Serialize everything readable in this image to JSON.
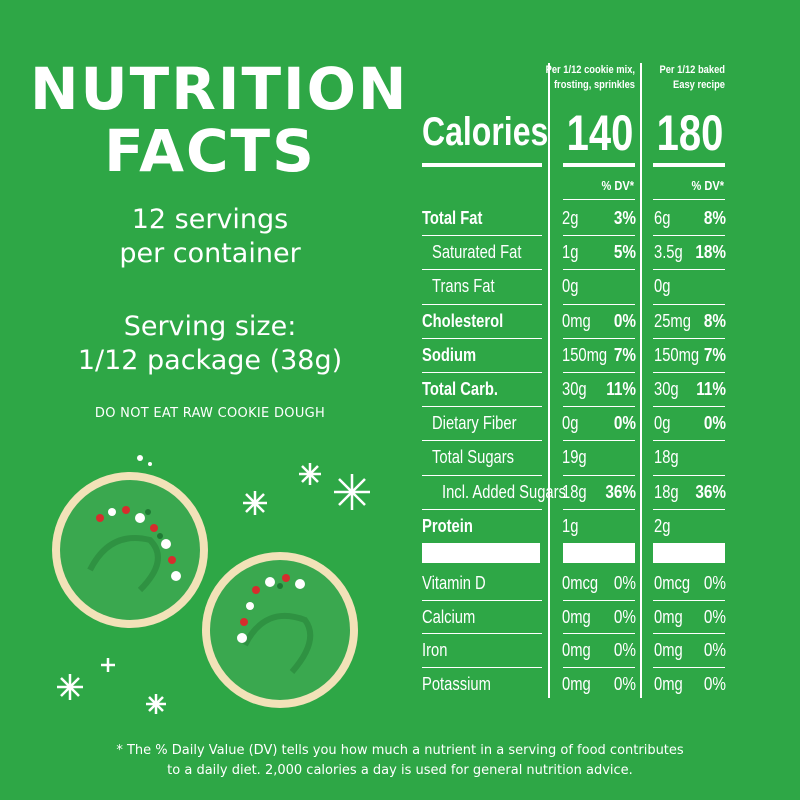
{
  "panel": {
    "title_line1": "NUTRITION",
    "title_line2": "FACTS",
    "servings_line1": "12 servings",
    "servings_line2": "per container",
    "size_line1": "Serving size:",
    "size_line2": "1/12 package (38g)",
    "warning": "DO NOT EAT RAW COOKIE DOUGH",
    "footnote_line1": "* The % Daily Value (DV) tells you how much a nutrient in a serving of food contributes",
    "footnote_line2": "to a daily diet. 2,000 calories a day is used for general nutrition advice."
  },
  "table": {
    "col1_head_line1": "Per 1/12 cookie mix,",
    "col1_head_line2": "frosting, sprinkles",
    "col2_head_line1": "Per 1/12 baked",
    "col2_head_line2": "Easy recipe",
    "calories_label": "Calories",
    "calories_1": "140",
    "calories_2": "180",
    "dv_header": "% DV*",
    "rows": [
      {
        "label": "Total Fat",
        "v1": "2g",
        "dv1": "3%",
        "v2": "6g",
        "dv2": "8%"
      },
      {
        "label": "Saturated Fat",
        "v1": "1g",
        "dv1": "5%",
        "v2": "3.5g",
        "dv2": "18%"
      },
      {
        "label": "Trans Fat",
        "v1": "0g",
        "dv1": "",
        "v2": "0g",
        "dv2": ""
      },
      {
        "label": "Cholesterol",
        "v1": "0mg",
        "dv1": "0%",
        "v2": "25mg",
        "dv2": "8%"
      },
      {
        "label": "Sodium",
        "v1": "150mg",
        "dv1": "7%",
        "v2": "150mg",
        "dv2": "7%"
      },
      {
        "label": "Total Carb.",
        "v1": "30g",
        "dv1": "11%",
        "v2": "30g",
        "dv2": "11%"
      },
      {
        "label": "Dietary Fiber",
        "v1": "0g",
        "dv1": "0%",
        "v2": "0g",
        "dv2": "0%"
      },
      {
        "label": "Total Sugars",
        "v1": "19g",
        "dv1": "",
        "v2": "18g",
        "dv2": ""
      },
      {
        "label": "Incl. Added Sugars",
        "v1": "18g",
        "dv1": "36%",
        "v2": "18g",
        "dv2": "36%"
      },
      {
        "label": "Protein",
        "v1": "1g",
        "dv1": "",
        "v2": "2g",
        "dv2": ""
      }
    ],
    "vitamins": [
      {
        "label": "Vitamin D",
        "v1": "0mcg",
        "dv1": "0%",
        "v2": "0mcg",
        "dv2": "0%"
      },
      {
        "label": "Calcium",
        "v1": "0mg",
        "dv1": "0%",
        "v2": "0mg",
        "dv2": "0%"
      },
      {
        "label": "Iron",
        "v1": "0mg",
        "dv1": "0%",
        "v2": "0mg",
        "dv2": "0%"
      },
      {
        "label": "Potassium",
        "v1": "0mg",
        "dv1": "0%",
        "v2": "0mg",
        "dv2": "0%"
      }
    ]
  },
  "colors": {
    "background": "#2ea746",
    "frosting": "#3aa84f",
    "cookie": "#f2e2b8"
  },
  "illustration": {
    "icons": [
      "cookie-icon",
      "snowflake-icon"
    ]
  }
}
